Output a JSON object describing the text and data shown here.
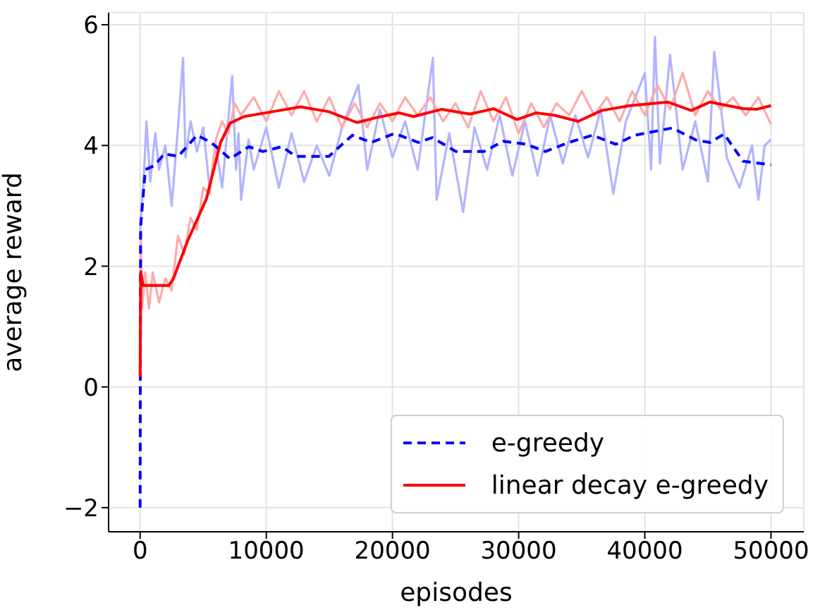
{
  "chart_data": {
    "type": "line",
    "xlabel": "episodes",
    "ylabel": "average reward",
    "xlim": [
      -2500,
      52600
    ],
    "xticks": [
      0,
      10000,
      20000,
      30000,
      40000,
      50000
    ],
    "ylim": [
      -2.4,
      6.2
    ],
    "yticks": [
      -2,
      0,
      2,
      4,
      6
    ],
    "grid": true,
    "legend": "bottom right",
    "marker": "none",
    "series": [
      {
        "color": "#b3b3ff",
        "x": [
          0,
          300,
          500,
          800,
          1200,
          1500,
          2000,
          2500,
          3000,
          3400,
          3600,
          4000,
          4500,
          5000,
          5500,
          6000,
          6500,
          7300,
          7600,
          7800,
          8000,
          8600,
          9000,
          10000,
          11000,
          12000,
          13000,
          14000,
          15000,
          16000,
          17300,
          18000,
          19000,
          20000,
          21000,
          22000,
          23200,
          23500,
          24500,
          25600,
          26500,
          27500,
          28500,
          29500,
          30500,
          31500,
          32500,
          33500,
          34500,
          35500,
          36500,
          37500,
          38500,
          40000,
          40500,
          40800,
          41200,
          42000,
          43000,
          44000,
          45000,
          45500,
          46500,
          47500,
          48500,
          49000,
          49500,
          50000
        ],
        "values": [
          2.6,
          3.5,
          4.4,
          3.4,
          4.2,
          3.6,
          4.0,
          3.0,
          4.3,
          5.45,
          3.8,
          4.4,
          3.9,
          4.3,
          3.3,
          4.0,
          3.3,
          5.15,
          3.6,
          4.2,
          3.1,
          4.1,
          3.6,
          4.3,
          3.3,
          4.2,
          3.4,
          4.0,
          3.5,
          4.3,
          5.0,
          3.6,
          4.6,
          3.8,
          4.4,
          3.6,
          5.45,
          3.1,
          4.2,
          2.9,
          4.3,
          3.6,
          4.5,
          3.5,
          4.4,
          3.5,
          4.5,
          3.7,
          4.5,
          3.8,
          4.6,
          3.2,
          4.4,
          5.2,
          3.6,
          5.8,
          3.7,
          5.5,
          3.6,
          4.4,
          3.4,
          5.55,
          3.8,
          3.3,
          4.0,
          3.1,
          4.0,
          4.1
        ]
      },
      {
        "color": "#ffaaaa",
        "x": [
          0,
          50,
          150,
          400,
          700,
          1000,
          1500,
          2000,
          2500,
          3000,
          3500,
          4000,
          4500,
          5000,
          5500,
          6000,
          6500,
          7000,
          7500,
          8000,
          9000,
          10000,
          11000,
          12000,
          13000,
          14000,
          15000,
          16000,
          17000,
          18000,
          19000,
          20000,
          21000,
          22000,
          23000,
          24000,
          25000,
          26000,
          27000,
          28000,
          29000,
          30000,
          31000,
          32000,
          33000,
          34000,
          35000,
          36000,
          37000,
          38000,
          39000,
          40000,
          41000,
          42000,
          43000,
          44000,
          45000,
          46000,
          47000,
          48000,
          49000,
          50000
        ],
        "values": [
          0.2,
          2.6,
          1.3,
          1.9,
          1.3,
          1.9,
          1.4,
          1.8,
          1.6,
          2.5,
          2.2,
          2.8,
          2.6,
          3.3,
          3.2,
          4.1,
          4.4,
          4.2,
          4.7,
          4.5,
          4.8,
          4.4,
          4.9,
          4.5,
          4.9,
          4.4,
          4.8,
          4.3,
          4.7,
          4.3,
          4.7,
          4.4,
          4.8,
          4.5,
          4.8,
          4.4,
          4.7,
          4.3,
          4.9,
          4.4,
          4.8,
          4.2,
          4.7,
          4.3,
          4.7,
          4.5,
          4.9,
          4.5,
          4.8,
          4.4,
          4.9,
          4.5,
          5.0,
          4.6,
          5.2,
          4.5,
          4.9,
          4.6,
          4.8,
          4.5,
          4.8,
          4.35
        ]
      },
      {
        "name": "e-greedy",
        "color": "#0000ff",
        "line_style": "dashed",
        "x": [
          0,
          37,
          410,
          1156,
          1902,
          3021,
          4513,
          5632,
          7124,
          8616,
          9735,
          11227,
          12346,
          14957,
          16822,
          18314,
          20179,
          22044,
          23163,
          25028,
          27266,
          28758,
          30623,
          32115,
          33980,
          35845,
          37710,
          39202,
          42186,
          44052,
          45170,
          46289,
          47781,
          50000
        ],
        "values": [
          -2,
          2.65,
          3.6,
          3.67,
          3.86,
          3.82,
          4.17,
          4.05,
          3.78,
          3.98,
          3.9,
          3.98,
          3.82,
          3.82,
          4.17,
          4.05,
          4.2,
          4.05,
          4.13,
          3.9,
          3.9,
          4.07,
          4.02,
          3.9,
          4.05,
          4.17,
          4.02,
          4.17,
          4.29,
          4.09,
          4.05,
          4.19,
          3.74,
          3.68
        ]
      },
      {
        "name": "linear decay e-greedy",
        "color": "#ff0000",
        "line_style": "solid",
        "x": [
          0,
          50,
          230,
          2275,
          2648,
          3767,
          5259,
          6378,
          7124,
          8243,
          10481,
          12719,
          14957,
          17195,
          18687,
          20552,
          21671,
          23909,
          26147,
          28012,
          29877,
          31369,
          32861,
          34726,
          36591,
          38829,
          41813,
          43678,
          45170,
          47781,
          48900,
          50000
        ],
        "values": [
          0.17,
          1.91,
          1.68,
          1.68,
          1.8,
          2.42,
          3.12,
          4.05,
          4.37,
          4.48,
          4.56,
          4.64,
          4.56,
          4.38,
          4.46,
          4.54,
          4.48,
          4.6,
          4.52,
          4.61,
          4.43,
          4.54,
          4.5,
          4.4,
          4.58,
          4.66,
          4.72,
          4.58,
          4.72,
          4.61,
          4.6,
          4.66
        ]
      }
    ]
  }
}
